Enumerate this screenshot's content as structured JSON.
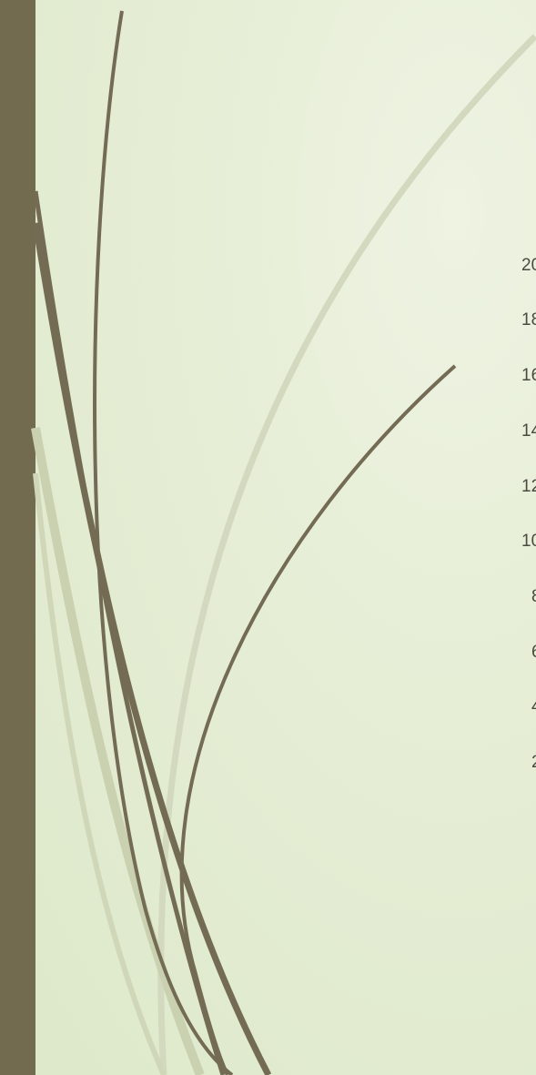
{
  "colors": {
    "bar": "#726b50",
    "stroke_dark": "#736b53",
    "stroke_light": "#c9d1b1",
    "text": "#4a4a40"
  },
  "icons": [
    "grass-stroke-decoration"
  ],
  "axis_ticks": [
    "20",
    "18",
    "16",
    "14",
    "12",
    "10",
    "8",
    "6",
    "4",
    "2"
  ]
}
